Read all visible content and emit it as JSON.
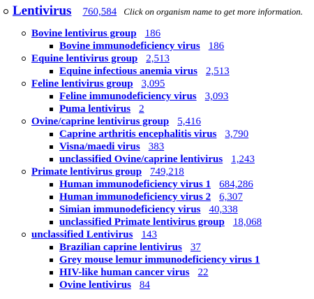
{
  "root": {
    "name": "Lentivirus",
    "count": "760,584",
    "note": "Click on organism name to get more information."
  },
  "groups": [
    {
      "name": "Bovine lentivirus group",
      "count": "186",
      "species": [
        {
          "name": "Bovine immunodeficiency virus",
          "count": "186"
        }
      ]
    },
    {
      "name": "Equine lentivirus group",
      "count": "2,513",
      "species": [
        {
          "name": "Equine infectious anemia virus",
          "count": "2,513"
        }
      ]
    },
    {
      "name": "Feline lentivirus group",
      "count": "3,095",
      "species": [
        {
          "name": "Feline immunodeficiency virus",
          "count": "3,093"
        },
        {
          "name": "Puma lentivirus",
          "count": "2"
        }
      ]
    },
    {
      "name": "Ovine/caprine lentivirus group",
      "count": "5,416",
      "species": [
        {
          "name": "Caprine arthritis encephalitis virus",
          "count": "3,790"
        },
        {
          "name": "Visna/maedi virus",
          "count": "383"
        },
        {
          "name": "unclassified Ovine/caprine lentivirus",
          "count": "1,243"
        }
      ]
    },
    {
      "name": "Primate lentivirus group",
      "count": "749,218",
      "species": [
        {
          "name": "Human immunodeficiency virus 1",
          "count": "684,286"
        },
        {
          "name": "Human immunodeficiency virus 2",
          "count": "6,307"
        },
        {
          "name": "Simian immunodeficiency virus",
          "count": "40,338"
        },
        {
          "name": "unclassified Primate lentivirus group",
          "count": "18,068"
        }
      ]
    },
    {
      "name": "unclassified Lentivirus",
      "count": "143",
      "species": [
        {
          "name": "Brazilian caprine lentivirus",
          "count": "37"
        },
        {
          "name": "Grey mouse lemur immunodeficiency virus 1",
          "count": ""
        },
        {
          "name": "HIV-like human cancer virus",
          "count": "22"
        },
        {
          "name": "Ovine lentivirus",
          "count": "84"
        }
      ]
    }
  ]
}
